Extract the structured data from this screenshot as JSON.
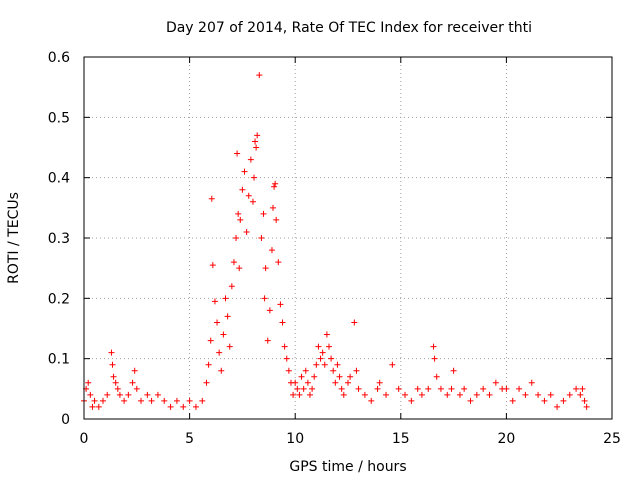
{
  "chart_data": {
    "type": "scatter",
    "title": "Day 207 of 2014, Rate Of TEC Index for receiver thti",
    "xlabel": "GPS time / hours",
    "ylabel": "ROTI / TECUs",
    "xlim": [
      0,
      25
    ],
    "ylim": [
      0,
      0.6
    ],
    "x_ticks": [
      0,
      5,
      10,
      15,
      20,
      25
    ],
    "x_tick_labels": [
      "0",
      "5",
      "10",
      "15",
      "20",
      "25"
    ],
    "y_ticks": [
      0,
      0.1,
      0.2,
      0.3,
      0.4,
      0.5,
      0.6
    ],
    "y_tick_labels": [
      "0",
      "0.1",
      "0.2",
      "0.3",
      "0.4",
      "0.5",
      "0.6"
    ],
    "grid": true,
    "marker": "+",
    "series": [
      {
        "name": "ROTI",
        "color": "#ff0000",
        "points": [
          [
            0.0,
            0.03
          ],
          [
            0.1,
            0.05
          ],
          [
            0.2,
            0.06
          ],
          [
            0.3,
            0.04
          ],
          [
            0.4,
            0.02
          ],
          [
            0.5,
            0.03
          ],
          [
            0.7,
            0.02
          ],
          [
            0.9,
            0.03
          ],
          [
            1.1,
            0.04
          ],
          [
            1.3,
            0.11
          ],
          [
            1.35,
            0.09
          ],
          [
            1.4,
            0.07
          ],
          [
            1.5,
            0.06
          ],
          [
            1.6,
            0.05
          ],
          [
            1.7,
            0.04
          ],
          [
            1.9,
            0.03
          ],
          [
            2.1,
            0.04
          ],
          [
            2.3,
            0.06
          ],
          [
            2.4,
            0.08
          ],
          [
            2.5,
            0.05
          ],
          [
            2.7,
            0.03
          ],
          [
            3.0,
            0.04
          ],
          [
            3.2,
            0.03
          ],
          [
            3.5,
            0.04
          ],
          [
            3.8,
            0.03
          ],
          [
            4.1,
            0.02
          ],
          [
            4.4,
            0.03
          ],
          [
            4.7,
            0.02
          ],
          [
            5.0,
            0.03
          ],
          [
            5.3,
            0.02
          ],
          [
            5.6,
            0.03
          ],
          [
            5.8,
            0.06
          ],
          [
            5.9,
            0.09
          ],
          [
            6.0,
            0.13
          ],
          [
            6.05,
            0.365
          ],
          [
            6.1,
            0.255
          ],
          [
            6.2,
            0.195
          ],
          [
            6.3,
            0.16
          ],
          [
            6.4,
            0.11
          ],
          [
            6.5,
            0.08
          ],
          [
            6.6,
            0.14
          ],
          [
            6.7,
            0.2
          ],
          [
            6.8,
            0.17
          ],
          [
            6.9,
            0.12
          ],
          [
            7.0,
            0.22
          ],
          [
            7.1,
            0.26
          ],
          [
            7.2,
            0.3
          ],
          [
            7.25,
            0.44
          ],
          [
            7.3,
            0.34
          ],
          [
            7.35,
            0.25
          ],
          [
            7.4,
            0.33
          ],
          [
            7.5,
            0.38
          ],
          [
            7.6,
            0.41
          ],
          [
            7.7,
            0.31
          ],
          [
            7.8,
            0.37
          ],
          [
            7.9,
            0.43
          ],
          [
            8.0,
            0.36
          ],
          [
            8.05,
            0.4
          ],
          [
            8.1,
            0.46
          ],
          [
            8.15,
            0.45
          ],
          [
            8.2,
            0.47
          ],
          [
            8.3,
            0.57
          ],
          [
            8.4,
            0.3
          ],
          [
            8.5,
            0.34
          ],
          [
            8.55,
            0.2
          ],
          [
            8.6,
            0.25
          ],
          [
            8.7,
            0.13
          ],
          [
            8.8,
            0.18
          ],
          [
            8.9,
            0.28
          ],
          [
            8.95,
            0.35
          ],
          [
            9.0,
            0.385
          ],
          [
            9.05,
            0.39
          ],
          [
            9.1,
            0.33
          ],
          [
            9.2,
            0.26
          ],
          [
            9.3,
            0.19
          ],
          [
            9.4,
            0.16
          ],
          [
            9.5,
            0.12
          ],
          [
            9.6,
            0.1
          ],
          [
            9.7,
            0.08
          ],
          [
            9.8,
            0.06
          ],
          [
            9.9,
            0.04
          ],
          [
            10.0,
            0.06
          ],
          [
            10.1,
            0.05
          ],
          [
            10.2,
            0.04
          ],
          [
            10.3,
            0.07
          ],
          [
            10.4,
            0.05
          ],
          [
            10.5,
            0.08
          ],
          [
            10.6,
            0.06
          ],
          [
            10.7,
            0.04
          ],
          [
            10.8,
            0.05
          ],
          [
            10.9,
            0.07
          ],
          [
            11.0,
            0.09
          ],
          [
            11.1,
            0.12
          ],
          [
            11.2,
            0.1
          ],
          [
            11.3,
            0.11
          ],
          [
            11.4,
            0.09
          ],
          [
            11.5,
            0.14
          ],
          [
            11.6,
            0.12
          ],
          [
            11.7,
            0.1
          ],
          [
            11.8,
            0.08
          ],
          [
            11.9,
            0.06
          ],
          [
            12.0,
            0.09
          ],
          [
            12.1,
            0.07
          ],
          [
            12.2,
            0.05
          ],
          [
            12.3,
            0.04
          ],
          [
            12.5,
            0.06
          ],
          [
            12.6,
            0.07
          ],
          [
            12.8,
            0.16
          ],
          [
            12.9,
            0.08
          ],
          [
            13.0,
            0.05
          ],
          [
            13.3,
            0.04
          ],
          [
            13.6,
            0.03
          ],
          [
            13.9,
            0.05
          ],
          [
            14.0,
            0.06
          ],
          [
            14.3,
            0.04
          ],
          [
            14.6,
            0.09
          ],
          [
            14.9,
            0.05
          ],
          [
            15.2,
            0.04
          ],
          [
            15.5,
            0.03
          ],
          [
            15.8,
            0.05
          ],
          [
            16.0,
            0.04
          ],
          [
            16.3,
            0.05
          ],
          [
            16.55,
            0.12
          ],
          [
            16.6,
            0.1
          ],
          [
            16.7,
            0.07
          ],
          [
            16.9,
            0.05
          ],
          [
            17.2,
            0.04
          ],
          [
            17.4,
            0.05
          ],
          [
            17.5,
            0.08
          ],
          [
            17.8,
            0.04
          ],
          [
            18.0,
            0.05
          ],
          [
            18.3,
            0.03
          ],
          [
            18.6,
            0.04
          ],
          [
            18.9,
            0.05
          ],
          [
            19.2,
            0.04
          ],
          [
            19.5,
            0.06
          ],
          [
            19.8,
            0.05
          ],
          [
            20.0,
            0.05
          ],
          [
            20.3,
            0.03
          ],
          [
            20.6,
            0.05
          ],
          [
            20.9,
            0.04
          ],
          [
            21.2,
            0.06
          ],
          [
            21.5,
            0.04
          ],
          [
            21.8,
            0.03
          ],
          [
            22.1,
            0.04
          ],
          [
            22.4,
            0.02
          ],
          [
            22.7,
            0.03
          ],
          [
            23.0,
            0.04
          ],
          [
            23.3,
            0.05
          ],
          [
            23.5,
            0.04
          ],
          [
            23.6,
            0.05
          ],
          [
            23.7,
            0.03
          ],
          [
            23.8,
            0.02
          ]
        ]
      }
    ]
  }
}
